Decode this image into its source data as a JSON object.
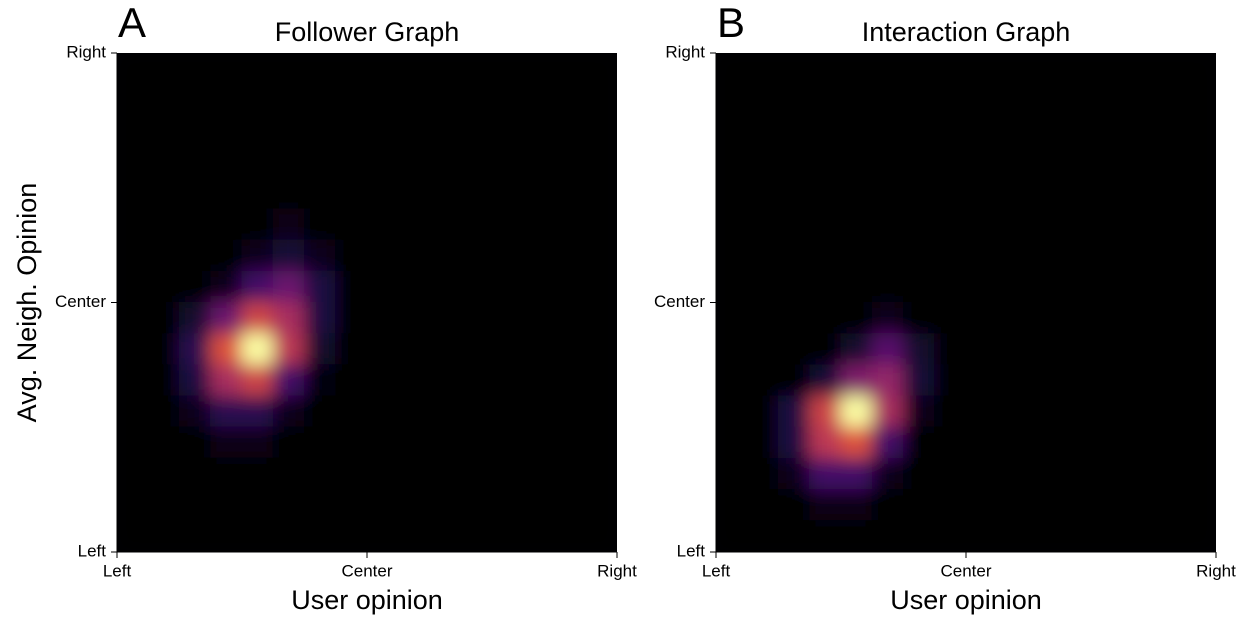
{
  "chart_data": [
    {
      "type": "heatmap",
      "panel_label": "A",
      "title": "Follower Graph",
      "x_label": "User opinion",
      "y_label": "Avg. Neigh. Opinion",
      "colormap": "inferno",
      "xlim": [
        -1,
        1
      ],
      "ylim": [
        -1,
        1
      ],
      "xticks": [
        {
          "value": -1,
          "label": "Left"
        },
        {
          "value": 0,
          "label": "Center"
        },
        {
          "value": 1,
          "label": "Right"
        }
      ],
      "yticks": [
        {
          "value": -1,
          "label": "Left"
        },
        {
          "value": 0,
          "label": "Center"
        },
        {
          "value": 1,
          "label": "Right"
        }
      ],
      "z": [
        [
          0,
          0,
          0,
          0,
          0,
          0,
          0,
          0,
          0,
          0,
          0,
          0,
          0,
          0,
          0,
          0
        ],
        [
          0,
          0,
          0,
          0,
          0,
          0,
          0,
          0,
          0,
          0,
          0,
          0,
          0,
          0,
          0,
          0
        ],
        [
          0,
          0,
          0,
          0,
          0,
          0,
          0,
          0,
          0,
          0,
          0,
          0,
          0,
          0,
          0,
          0
        ],
        [
          0,
          0,
          0,
          0,
          0,
          0,
          0,
          0,
          0,
          0,
          0,
          0,
          0,
          0,
          0,
          0
        ],
        [
          0,
          0,
          0,
          0,
          0,
          0,
          0,
          0,
          0,
          0,
          0,
          0,
          0,
          0,
          0,
          0
        ],
        [
          0,
          0,
          0,
          0,
          0,
          0.03,
          0,
          0,
          0,
          0,
          0,
          0,
          0,
          0,
          0,
          0
        ],
        [
          0,
          0,
          0,
          0,
          0.05,
          0.1,
          0.05,
          0,
          0,
          0,
          0,
          0,
          0,
          0,
          0,
          0
        ],
        [
          0,
          0,
          0,
          0.05,
          0.2,
          0.3,
          0.12,
          0,
          0,
          0,
          0,
          0,
          0,
          0,
          0,
          0
        ],
        [
          0,
          0,
          0.08,
          0.3,
          0.55,
          0.45,
          0.12,
          0,
          0,
          0,
          0,
          0,
          0,
          0,
          0,
          0
        ],
        [
          0,
          0,
          0.15,
          0.6,
          1.0,
          0.5,
          0.08,
          0,
          0,
          0,
          0,
          0,
          0,
          0,
          0,
          0
        ],
        [
          0,
          0,
          0.12,
          0.45,
          0.55,
          0.2,
          0.02,
          0,
          0,
          0,
          0,
          0,
          0,
          0,
          0,
          0
        ],
        [
          0,
          0,
          0.05,
          0.15,
          0.15,
          0.05,
          0,
          0,
          0,
          0,
          0,
          0,
          0,
          0,
          0,
          0
        ],
        [
          0,
          0,
          0,
          0.03,
          0.03,
          0,
          0,
          0,
          0,
          0,
          0,
          0,
          0,
          0,
          0,
          0
        ],
        [
          0,
          0,
          0,
          0,
          0,
          0,
          0,
          0,
          0,
          0,
          0,
          0,
          0,
          0,
          0,
          0
        ],
        [
          0,
          0,
          0,
          0,
          0,
          0,
          0,
          0,
          0,
          0,
          0,
          0,
          0,
          0,
          0,
          0
        ],
        [
          0,
          0,
          0,
          0,
          0,
          0,
          0,
          0,
          0,
          0,
          0,
          0,
          0,
          0,
          0,
          0
        ]
      ]
    },
    {
      "type": "heatmap",
      "panel_label": "B",
      "title": "Interaction Graph",
      "x_label": "User opinion",
      "colormap": "inferno",
      "xlim": [
        -1,
        1
      ],
      "ylim": [
        -1,
        1
      ],
      "xticks": [
        {
          "value": -1,
          "label": "Left"
        },
        {
          "value": 0,
          "label": "Center"
        },
        {
          "value": 1,
          "label": "Right"
        }
      ],
      "yticks": [
        {
          "value": -1,
          "label": "Left"
        },
        {
          "value": 0,
          "label": "Center"
        },
        {
          "value": 1,
          "label": "Right"
        }
      ],
      "z": [
        [
          0,
          0,
          0,
          0,
          0,
          0,
          0,
          0,
          0,
          0,
          0,
          0,
          0,
          0,
          0,
          0
        ],
        [
          0,
          0,
          0,
          0,
          0,
          0,
          0,
          0,
          0,
          0,
          0,
          0,
          0,
          0,
          0,
          0
        ],
        [
          0,
          0,
          0,
          0,
          0,
          0,
          0,
          0,
          0,
          0,
          0,
          0,
          0,
          0,
          0,
          0
        ],
        [
          0,
          0,
          0,
          0,
          0,
          0,
          0,
          0,
          0,
          0,
          0,
          0,
          0,
          0,
          0,
          0
        ],
        [
          0,
          0,
          0,
          0,
          0,
          0,
          0,
          0,
          0,
          0,
          0,
          0,
          0,
          0,
          0,
          0
        ],
        [
          0,
          0,
          0,
          0,
          0,
          0,
          0,
          0,
          0,
          0,
          0,
          0,
          0,
          0,
          0,
          0
        ],
        [
          0,
          0,
          0,
          0,
          0,
          0,
          0,
          0,
          0,
          0,
          0,
          0,
          0,
          0,
          0,
          0
        ],
        [
          0,
          0,
          0,
          0,
          0,
          0,
          0,
          0,
          0,
          0,
          0,
          0,
          0,
          0,
          0,
          0
        ],
        [
          0,
          0,
          0,
          0,
          0,
          0.05,
          0,
          0,
          0,
          0,
          0,
          0,
          0,
          0,
          0,
          0
        ],
        [
          0,
          0,
          0,
          0,
          0.08,
          0.25,
          0.08,
          0,
          0,
          0,
          0,
          0,
          0,
          0,
          0,
          0
        ],
        [
          0,
          0,
          0,
          0.1,
          0.35,
          0.4,
          0.1,
          0,
          0,
          0,
          0,
          0,
          0,
          0,
          0,
          0
        ],
        [
          0,
          0,
          0.12,
          0.55,
          1.0,
          0.45,
          0.05,
          0,
          0,
          0,
          0,
          0,
          0,
          0,
          0,
          0
        ],
        [
          0,
          0,
          0.12,
          0.5,
          0.6,
          0.2,
          0,
          0,
          0,
          0,
          0,
          0,
          0,
          0,
          0,
          0
        ],
        [
          0,
          0,
          0.05,
          0.2,
          0.2,
          0.05,
          0,
          0,
          0,
          0,
          0,
          0,
          0,
          0,
          0,
          0
        ],
        [
          0,
          0,
          0,
          0.04,
          0.04,
          0,
          0,
          0,
          0,
          0,
          0,
          0,
          0,
          0,
          0,
          0
        ],
        [
          0,
          0,
          0,
          0,
          0,
          0,
          0,
          0,
          0,
          0,
          0,
          0,
          0,
          0,
          0,
          0
        ]
      ]
    }
  ]
}
